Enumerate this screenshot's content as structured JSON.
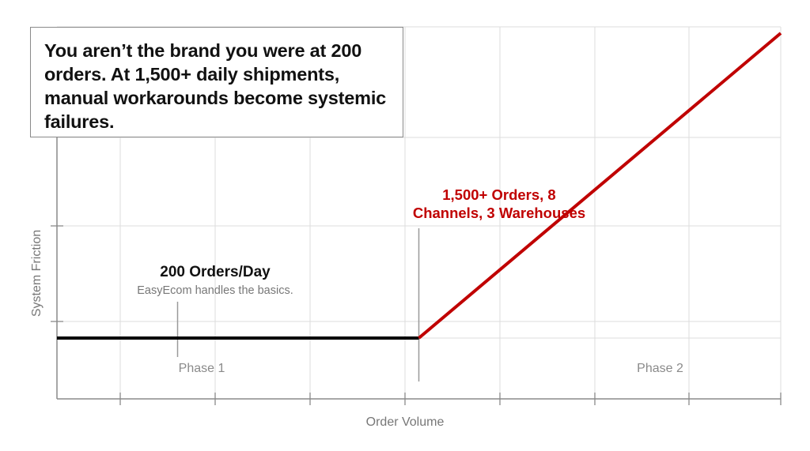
{
  "callout": {
    "text": "You aren’t the brand you were at 200 orders. At 1,500+ daily shipments, manual workarounds become systemic failures."
  },
  "chart_data": {
    "type": "line",
    "xlabel": "Order Volume",
    "ylabel": "System Friction",
    "grid": true,
    "series": [
      {
        "segment": "phase-1",
        "color": "#000000",
        "x": [
          0,
          1500
        ],
        "y": [
          0,
          0
        ]
      },
      {
        "segment": "phase-2",
        "color": "#c00000",
        "x": [
          1500,
          3000
        ],
        "y": [
          0,
          10
        ]
      }
    ],
    "regions": [
      {
        "label": "Phase 1",
        "x": 600
      },
      {
        "label": "Phase 2",
        "x": 2500
      }
    ],
    "annotations": [
      {
        "title": "200 Orders/Day",
        "subtitle": "EasyEcom handles the basics.",
        "x": 500,
        "color": "#111111"
      },
      {
        "title_lines": [
          "1,500+ Orders, 8",
          "Channels, 3 Warehouses"
        ],
        "x": 1500,
        "color": "#c00000"
      }
    ],
    "colors": {
      "accent": "#c00000",
      "baseline": "#000000",
      "grid": "#dcdcdc",
      "axis": "#8a8a8a",
      "muted": "#777777"
    }
  }
}
